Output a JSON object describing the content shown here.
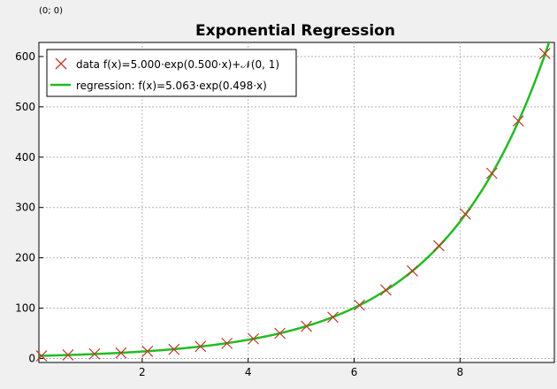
{
  "coordinate_readout": "(0; 0)",
  "chart_data": {
    "type": "scatter",
    "title": "Exponential Regression",
    "xlabel": "",
    "ylabel": "",
    "xlim": [
      0.05,
      9.78
    ],
    "ylim": [
      -8,
      628
    ],
    "x_ticks": [
      2,
      4,
      6,
      8
    ],
    "y_ticks": [
      0,
      100,
      200,
      300,
      400,
      500,
      600
    ],
    "grid": true,
    "legend_position": "top-left",
    "series": [
      {
        "name": "data f(x)=5.000·exp(0.500·x)+𝒩(0, 1)",
        "kind": "scatter",
        "marker": "x",
        "color": "#c0392b",
        "x": [
          0.1,
          0.6,
          1.1,
          1.6,
          2.1,
          2.6,
          3.1,
          3.6,
          4.1,
          4.6,
          5.1,
          5.6,
          6.1,
          6.6,
          7.1,
          7.6,
          8.1,
          8.6,
          9.1,
          9.6
        ],
        "y": [
          5,
          7,
          9,
          11,
          14,
          18,
          24,
          30,
          39,
          50,
          64,
          82,
          106,
          136,
          174,
          224,
          287,
          368,
          472,
          606
        ]
      },
      {
        "name": "regression: f(x)=5.063·exp(0.498·x)",
        "kind": "line",
        "color": "#22bb22",
        "a": 5.063,
        "b": 0.498
      }
    ]
  }
}
